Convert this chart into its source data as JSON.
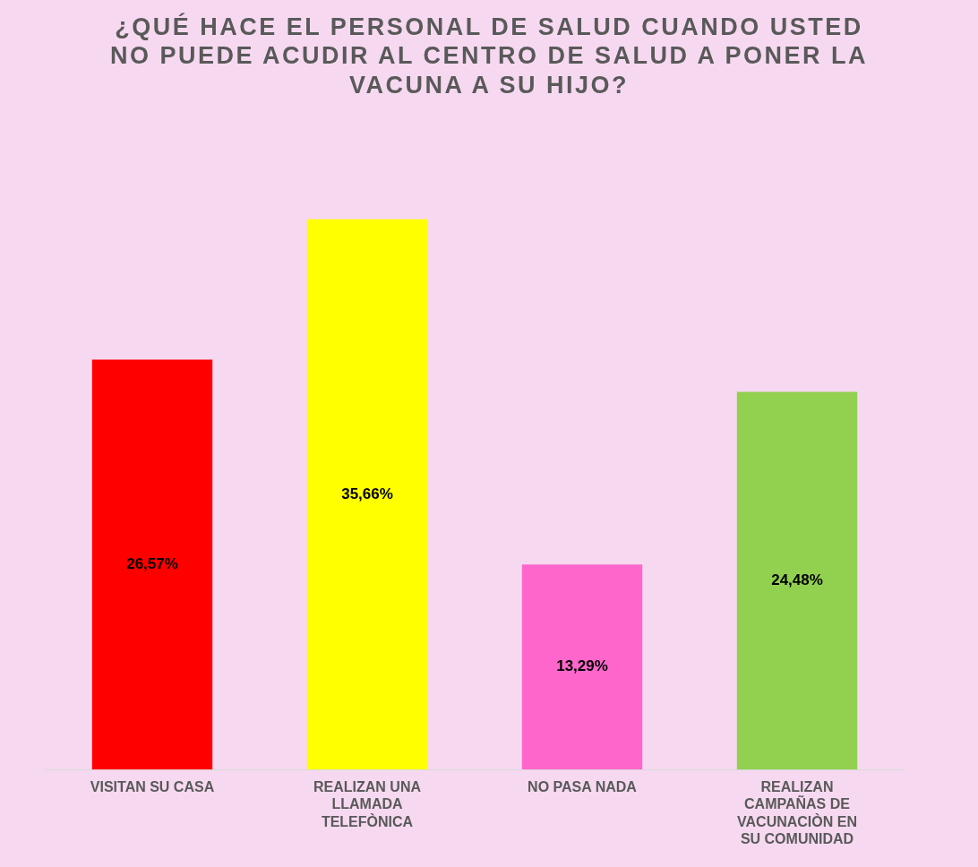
{
  "chart_data": {
    "type": "bar",
    "title": "¿QUÉ HACE EL PERSONAL DE SALUD CUANDO USTED NO PUEDE ACUDIR AL CENTRO DE SALUD A PONER LA VACUNA A SU HIJO?",
    "categories": [
      "VISITAN SU CASA",
      "REALIZAN UNA LLAMADA TELEFÒNICA",
      "NO PASA NADA",
      "REALIZAN CAMPAÑAS DE VACUNACIÒN EN SU COMUNIDAD"
    ],
    "values": [
      26.57,
      35.66,
      13.29,
      24.48
    ],
    "value_labels": [
      "26,57%",
      "35,66%",
      "13,29%",
      "24,48%"
    ],
    "colors": [
      "#ff0000",
      "#ffff00",
      "#ff66cc",
      "#92d050"
    ]
  }
}
